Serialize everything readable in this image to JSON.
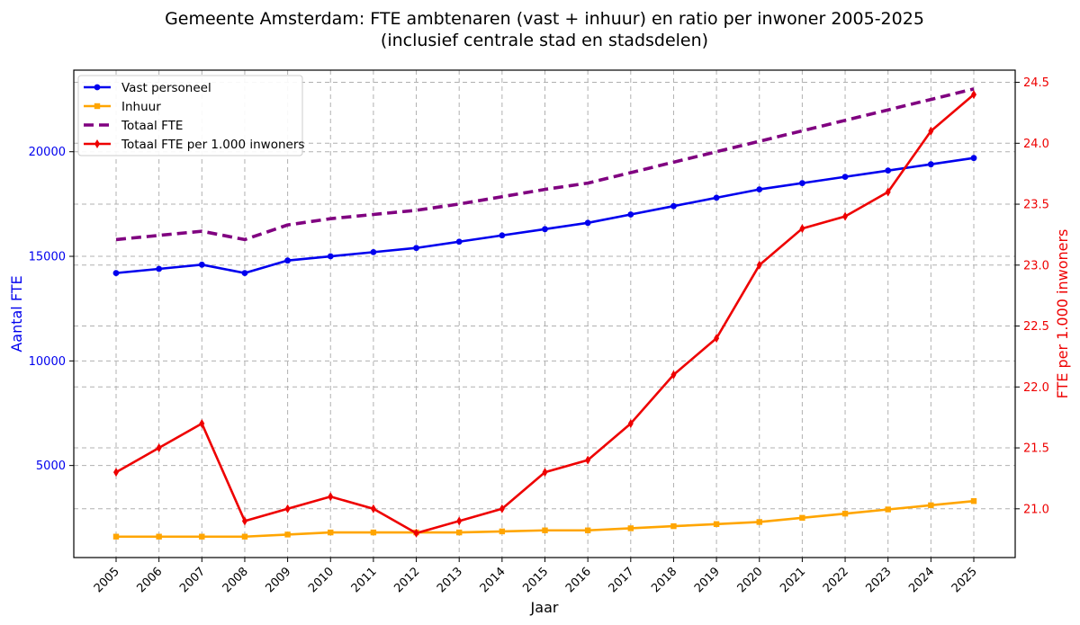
{
  "chart_data": {
    "type": "line",
    "title": "Gemeente Amsterdam: FTE ambtenaren (vast + inhuur) en ratio per inwoner 2005-2025",
    "subtitle": "(inclusief centrale stad en stadsdelen)",
    "xlabel": "Jaar",
    "ylabel_left": "Aantal FTE",
    "ylabel_right": "FTE per 1.000 inwoners",
    "x": [
      "2005",
      "2006",
      "2007",
      "2008",
      "2009",
      "2010",
      "2011",
      "2012",
      "2013",
      "2014",
      "2015",
      "2016",
      "2017",
      "2018",
      "2019",
      "2020",
      "2021",
      "2022",
      "2023",
      "2024",
      "2025"
    ],
    "y_left_lim": [
      600,
      23900
    ],
    "y_right_lim": [
      20.6,
      24.6
    ],
    "y_left_ticks": [
      "5000",
      "10000",
      "15000",
      "20000"
    ],
    "y_right_ticks": [
      "21.0",
      "21.5",
      "22.0",
      "22.5",
      "23.0",
      "23.5",
      "24.0",
      "24.5"
    ],
    "grid": true,
    "legend_position": "top-left",
    "series": [
      {
        "name": "Vast personeel",
        "axis": "left",
        "color": "#0000ee",
        "style": "solid",
        "marker": "circle",
        "values": [
          14200,
          14400,
          14600,
          14200,
          14800,
          15000,
          15200,
          15400,
          15700,
          16000,
          16300,
          16600,
          17000,
          17400,
          17800,
          18200,
          18500,
          18800,
          19100,
          19400,
          19700
        ]
      },
      {
        "name": "Inhuur",
        "axis": "left",
        "color": "#ffa500",
        "style": "solid",
        "marker": "square",
        "values": [
          1600,
          1600,
          1600,
          1600,
          1700,
          1800,
          1800,
          1800,
          1800,
          1850,
          1900,
          1900,
          2000,
          2100,
          2200,
          2300,
          2500,
          2700,
          2900,
          3100,
          3300
        ]
      },
      {
        "name": "Totaal FTE",
        "axis": "left",
        "color": "#800080",
        "style": "dashed",
        "marker": "none",
        "values": [
          15800,
          16000,
          16200,
          15800,
          16500,
          16800,
          17000,
          17200,
          17500,
          17850,
          18200,
          18500,
          19000,
          19500,
          20000,
          20500,
          21000,
          21500,
          22000,
          22500,
          23000
        ]
      },
      {
        "name": "Totaal FTE per 1.000 inwoners",
        "axis": "right",
        "color": "#ee0000",
        "style": "solid",
        "marker": "diamond",
        "values": [
          21.3,
          21.5,
          21.7,
          20.9,
          21.0,
          21.1,
          21.0,
          20.8,
          20.9,
          21.0,
          21.3,
          21.4,
          21.7,
          22.1,
          22.4,
          23.0,
          23.3,
          23.4,
          23.6,
          24.1,
          24.4
        ]
      }
    ]
  }
}
